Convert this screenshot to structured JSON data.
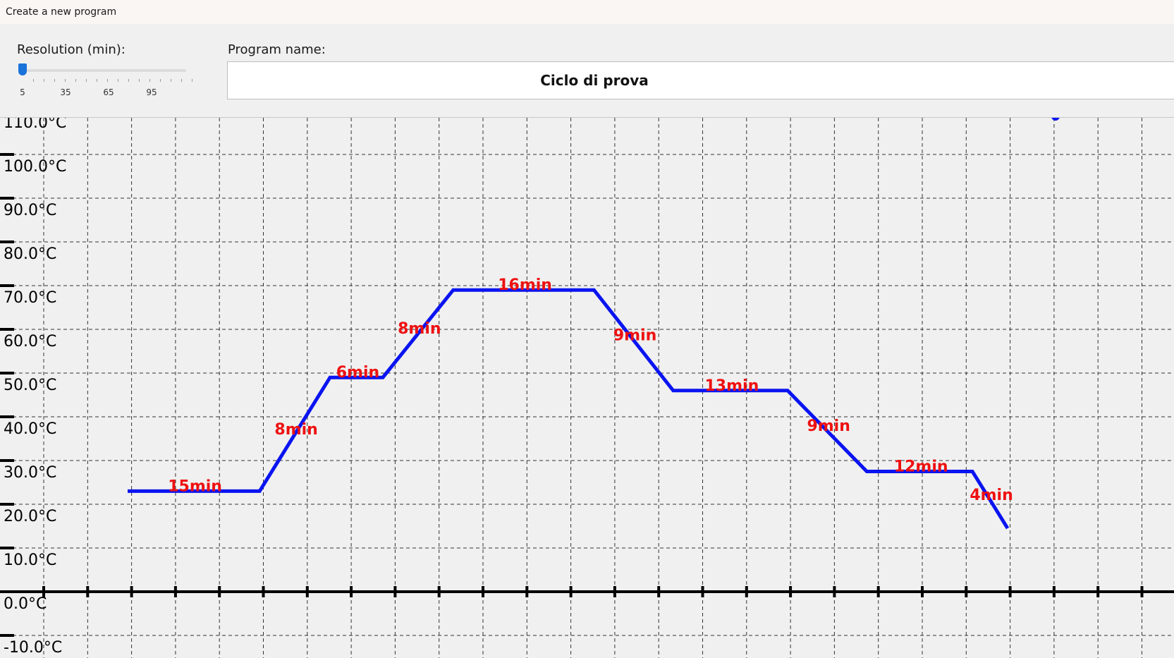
{
  "window": {
    "title": "Create a new program"
  },
  "controls": {
    "resolution_label": "Resolution (min):",
    "resolution_value": 5,
    "resolution_ticks": [
      "5",
      "35",
      "65",
      "95"
    ],
    "program_name_label": "Program name:",
    "program_name_value": "Ciclo di prova"
  },
  "colors": {
    "profile": "#0a14f0",
    "duration_label": "#ee1111",
    "grid": "#333333"
  },
  "chart_data": {
    "type": "line",
    "x_unit": "min",
    "y_unit": "°C",
    "y_ticks": [
      "110.0°C",
      "100.0°C",
      "90.0°C",
      "80.0°C",
      "70.0°C",
      "60.0°C",
      "50.0°C",
      "40.0°C",
      "30.0°C",
      "20.0°C",
      "10.0°C",
      "0.0°C",
      "-10.0°C"
    ],
    "ylim": [
      -13,
      112
    ],
    "xlim": [
      -10,
      260
    ],
    "grid": true,
    "points": [
      {
        "x": 0,
        "y": 23
      },
      {
        "x": 15,
        "y": 23
      },
      {
        "x": 23,
        "y": 49
      },
      {
        "x": 29,
        "y": 49
      },
      {
        "x": 37,
        "y": 69
      },
      {
        "x": 53,
        "y": 69
      },
      {
        "x": 62,
        "y": 46
      },
      {
        "x": 75,
        "y": 46
      },
      {
        "x": 84,
        "y": 27.5
      },
      {
        "x": 96,
        "y": 27.5
      },
      {
        "x": 100,
        "y": 14.5
      }
    ],
    "segments": [
      "15min",
      "8min",
      "6min",
      "8min",
      "16min",
      "9min",
      "13min",
      "9min",
      "12min",
      "4min"
    ]
  }
}
